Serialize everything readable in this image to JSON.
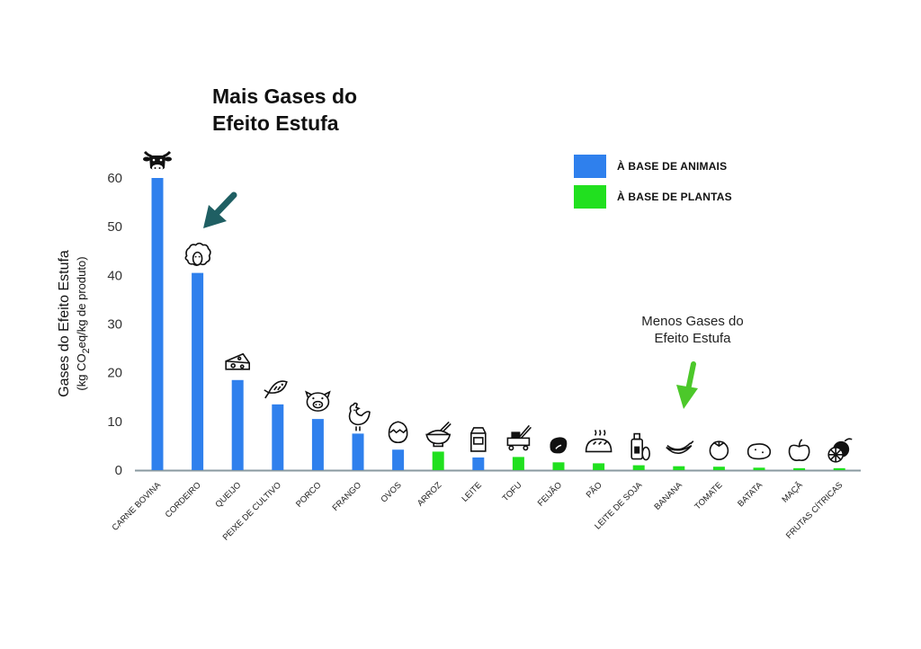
{
  "chart_data": {
    "type": "bar",
    "title": "Mais Gases do Efeito Estufa",
    "title_lines": [
      "Mais Gases do",
      "Efeito Estufa"
    ],
    "ylabel": "Gases do Efeito Estufa",
    "ylabel_unit_parts": [
      "(kg CO",
      "2",
      "eq/kg de produto)"
    ],
    "xlabel": "",
    "ylim": [
      0,
      60
    ],
    "yticks": [
      0,
      10,
      20,
      30,
      40,
      50,
      60
    ],
    "grid": false,
    "legend_position": "top-right",
    "series": [
      {
        "name": "À BASE DE ANIMAIS",
        "color": "#2f80ed"
      },
      {
        "name": "À BASE DE PLANTAS",
        "color": "#21e01f"
      }
    ],
    "bars": [
      {
        "category": "CARNE BOVINA",
        "value": 60,
        "series": 0,
        "icon": "cow-icon"
      },
      {
        "category": "CORDEIRO",
        "value": 40.5,
        "series": 0,
        "icon": "sheep-icon"
      },
      {
        "category": "QUEIJO",
        "value": 18.5,
        "series": 0,
        "icon": "cheese-icon"
      },
      {
        "category": "PEIXE DE CULTIVO",
        "value": 13.5,
        "series": 0,
        "icon": "fish-icon"
      },
      {
        "category": "PORCO",
        "value": 10.5,
        "series": 0,
        "icon": "pig-icon"
      },
      {
        "category": "FRANGO",
        "value": 7.5,
        "series": 0,
        "icon": "chicken-icon"
      },
      {
        "category": "OVOS",
        "value": 4.2,
        "series": 0,
        "icon": "egg-icon"
      },
      {
        "category": "ARROZ",
        "value": 3.8,
        "series": 1,
        "icon": "rice-bowl-icon"
      },
      {
        "category": "LEITE",
        "value": 2.6,
        "series": 0,
        "icon": "milk-carton-icon"
      },
      {
        "category": "TOFU",
        "value": 2.7,
        "series": 1,
        "icon": "tofu-icon"
      },
      {
        "category": "FEIJÃO",
        "value": 1.6,
        "series": 1,
        "icon": "bean-icon"
      },
      {
        "category": "PÃO",
        "value": 1.4,
        "series": 1,
        "icon": "bread-icon"
      },
      {
        "category": "LEITE DE SOJA",
        "value": 1.0,
        "series": 1,
        "icon": "soy-milk-icon"
      },
      {
        "category": "BANANA",
        "value": 0.8,
        "series": 1,
        "icon": "banana-icon"
      },
      {
        "category": "TOMATE",
        "value": 0.7,
        "series": 1,
        "icon": "tomato-icon"
      },
      {
        "category": "BATATA",
        "value": 0.5,
        "series": 1,
        "icon": "potato-icon"
      },
      {
        "category": "MAÇÃ",
        "value": 0.4,
        "series": 1,
        "icon": "apple-icon"
      },
      {
        "category": "FRUTAS CÍTRICAS",
        "value": 0.4,
        "series": 1,
        "icon": "citrus-icon"
      }
    ],
    "annotations": {
      "less_lines": [
        "Menos Gases do",
        "Efeito Estufa"
      ],
      "arrow_more_color": "#1f5f63",
      "arrow_less_color": "#4cc82a"
    }
  }
}
